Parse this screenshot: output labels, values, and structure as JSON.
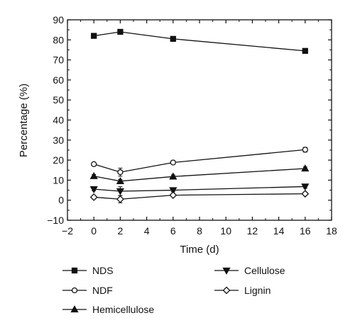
{
  "chart_data": {
    "type": "line",
    "title": "",
    "xlabel": "Time (d)",
    "ylabel": "Percentage (%)",
    "xlim": [
      -2,
      18
    ],
    "ylim": [
      -10,
      90
    ],
    "xticks": [
      -2,
      0,
      2,
      4,
      6,
      8,
      10,
      12,
      14,
      16,
      18
    ],
    "yticks": [
      -10,
      0,
      10,
      20,
      30,
      40,
      50,
      60,
      70,
      80,
      90
    ],
    "x": [
      0,
      2,
      6,
      16
    ],
    "grid": false,
    "legend_placement": "bottom",
    "series": [
      {
        "name": "NDS",
        "marker": "square-filled",
        "values": [
          82,
          84,
          80.5,
          74.5
        ],
        "errors": [
          0.8,
          0.6,
          0.6,
          1.2
        ]
      },
      {
        "name": "NDF",
        "marker": "circle-open",
        "values": [
          18,
          14,
          18.8,
          25.2
        ],
        "errors": [
          0.8,
          2.0,
          0.8,
          1.2
        ]
      },
      {
        "name": "Hemicellulose",
        "marker": "triangle-up-filled",
        "values": [
          12,
          9.5,
          11.8,
          15.8
        ],
        "errors": [
          0.8,
          0.8,
          0.8,
          0.8
        ]
      },
      {
        "name": "Cellulose",
        "marker": "triangle-down-filled",
        "values": [
          5.5,
          4.5,
          5,
          6.8
        ],
        "errors": [
          0.8,
          2.2,
          0.8,
          0.8
        ]
      },
      {
        "name": "Lignin",
        "marker": "diamond-open",
        "values": [
          1.5,
          0.5,
          2.5,
          3.2
        ],
        "errors": [
          0.8,
          1.8,
          0.5,
          0.5
        ]
      }
    ],
    "legend_columns": [
      [
        "NDS",
        "NDF",
        "Hemicellulose"
      ],
      [
        "Cellulose",
        "Lignin"
      ]
    ]
  }
}
